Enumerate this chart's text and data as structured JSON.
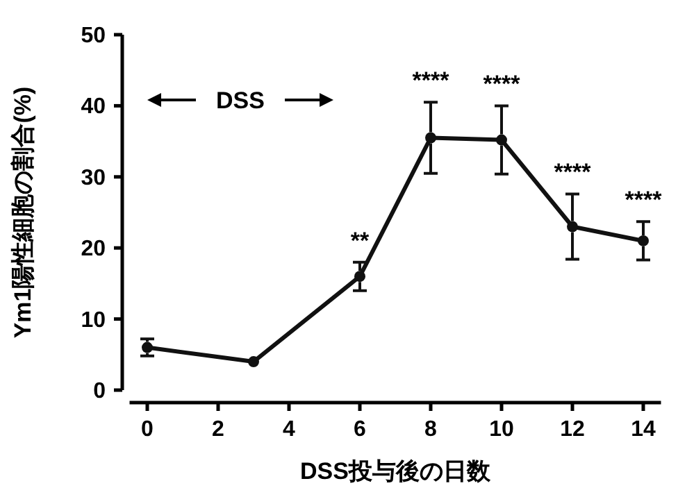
{
  "chart_data": {
    "type": "line",
    "xlabel": "DSS投与後の日数",
    "ylabel": "Ym1陽性細胞の割合(%)",
    "x": [
      0,
      3,
      6,
      8,
      10,
      12,
      14
    ],
    "series": [
      {
        "color": "#111111",
        "values": [
          6,
          4,
          16,
          35.5,
          35.2,
          23,
          21
        ],
        "errors": [
          1.2,
          null,
          2,
          5,
          4.8,
          4.6,
          2.7
        ]
      }
    ],
    "xlim": [
      -0.5,
      14.5
    ],
    "xticks": [
      0,
      2,
      4,
      6,
      8,
      10,
      12,
      14
    ],
    "ylim": [
      0,
      50
    ],
    "yticks": [
      0,
      10,
      20,
      30,
      40,
      50
    ],
    "marker": "circle",
    "line_style": "solid",
    "annotations": [
      {
        "text": "**",
        "x": 6,
        "y": 18
      },
      {
        "text": "****",
        "x": 8,
        "y": 40.5
      },
      {
        "text": "****",
        "x": 10,
        "y": 40
      },
      {
        "text": "****",
        "x": 12,
        "y": 27.6
      },
      {
        "text": "****",
        "x": 14,
        "y": 23.7
      },
      "DSS"
    ]
  }
}
